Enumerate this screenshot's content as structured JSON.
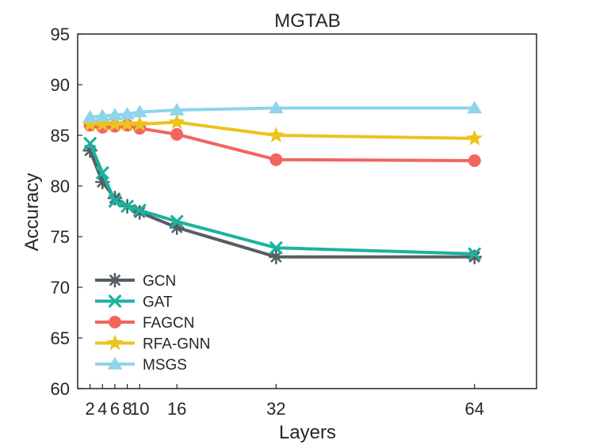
{
  "chart_data": {
    "type": "line",
    "title": "MGTAB",
    "xlabel": "Layers",
    "ylabel": "Accuracy",
    "x": [
      2,
      4,
      6,
      8,
      10,
      16,
      32,
      64
    ],
    "xticks": [
      2,
      4,
      6,
      8,
      10,
      16,
      32,
      64
    ],
    "xtick_labels": [
      "2",
      "4",
      "6",
      "8",
      "10",
      "16",
      "32",
      "64"
    ],
    "xlim": [
      0,
      74
    ],
    "ylim": [
      60,
      95
    ],
    "yticks": [
      60,
      65,
      70,
      75,
      80,
      85,
      90,
      95
    ],
    "ytick_labels": [
      "60",
      "65",
      "70",
      "75",
      "80",
      "85",
      "90",
      "95"
    ],
    "grid": false,
    "legend_position": "bottom-left",
    "series": [
      {
        "name": "GCN",
        "color": "#555e63",
        "marker": "asterisk",
        "values": [
          83.5,
          80.4,
          78.8,
          78.0,
          77.4,
          75.9,
          73.0,
          73.0
        ]
      },
      {
        "name": "GAT",
        "color": "#1ab3a0",
        "marker": "x",
        "values": [
          84.2,
          81.3,
          78.5,
          78.0,
          77.6,
          76.5,
          73.9,
          73.3
        ]
      },
      {
        "name": "FAGCN",
        "color": "#f2655f",
        "marker": "circle",
        "values": [
          86.0,
          85.8,
          85.9,
          86.0,
          85.7,
          85.1,
          82.6,
          82.5
        ]
      },
      {
        "name": "RFA-GNN",
        "color": "#ecc31c",
        "marker": "star",
        "values": [
          86.1,
          86.1,
          86.1,
          86.1,
          86.1,
          86.3,
          85.0,
          84.7
        ]
      },
      {
        "name": "MSGS",
        "color": "#8dd4ec",
        "marker": "triangle",
        "values": [
          86.8,
          86.9,
          87.0,
          87.1,
          87.3,
          87.5,
          87.7,
          87.7
        ]
      }
    ]
  }
}
